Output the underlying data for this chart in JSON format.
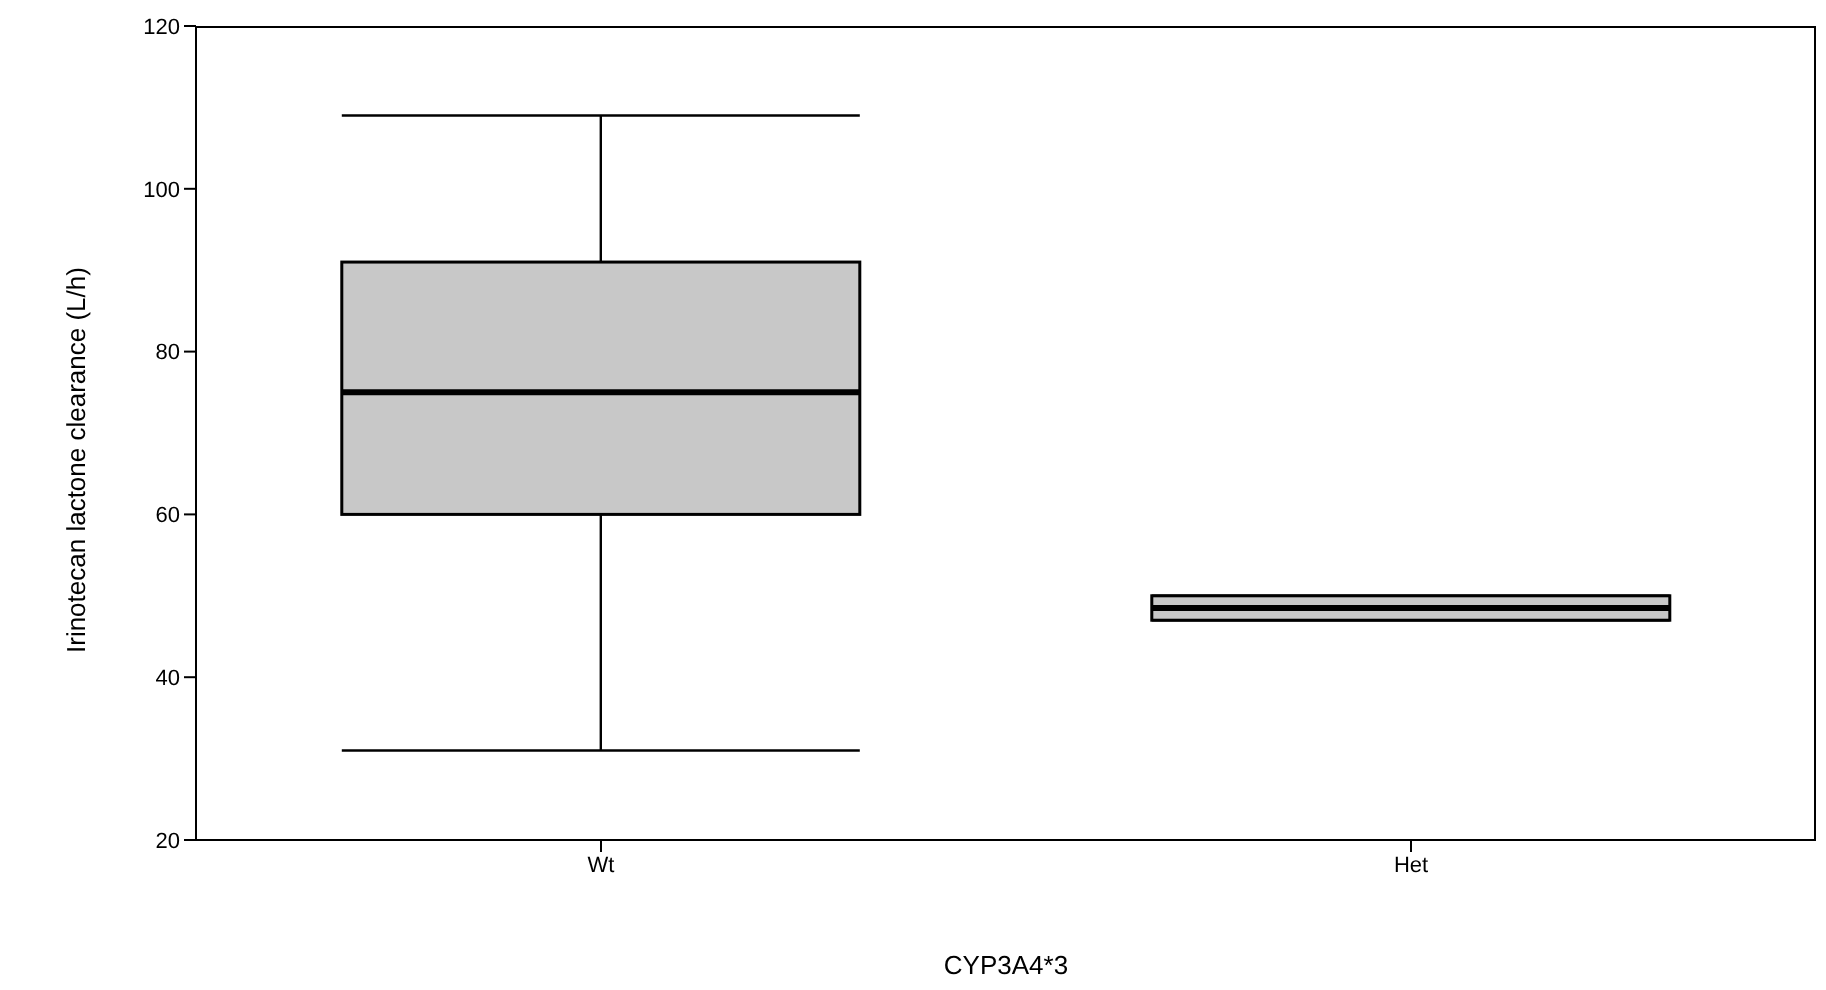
{
  "chart_data": {
    "type": "box",
    "xlabel": "CYP3A4*3",
    "ylabel": "Irinotecan lactone clearance (L/h)",
    "categories": [
      "Wt",
      "Het"
    ],
    "color": "#c8c8c8",
    "ylim": [
      20,
      120
    ],
    "yticks": [
      20,
      40,
      60,
      80,
      100,
      120
    ],
    "boxes": [
      {
        "low": 31,
        "q1": 60,
        "median": 75,
        "q3": 91,
        "high": 109
      },
      {
        "low": 47,
        "q1": 47,
        "median": 48.5,
        "q3": 50,
        "high": 50
      }
    ]
  }
}
